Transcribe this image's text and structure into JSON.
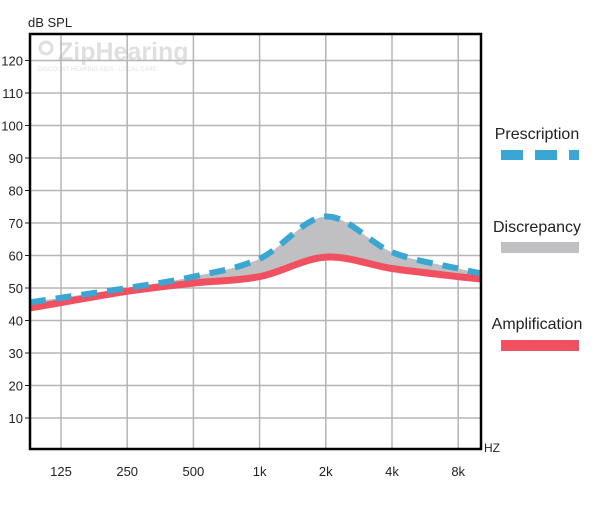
{
  "watermark": {
    "brand": "ZipHearing",
    "tagline": "DISCOUNT HEARING AIDS · LOCAL CARE"
  },
  "chart_data": {
    "type": "line",
    "ylabel": "dB SPL",
    "xlabel": "HZ",
    "ylim": [
      0,
      128
    ],
    "yticks": [
      10,
      20,
      30,
      40,
      50,
      60,
      70,
      80,
      90,
      100,
      110,
      120
    ],
    "xticks": [
      "125",
      "250",
      "500",
      "1k",
      "2k",
      "4k",
      "8k"
    ],
    "x_scale": "log2 (octaves)",
    "grid": true,
    "legend_placement": "right",
    "x": [
      "125",
      "250",
      "500",
      "1k",
      "2k",
      "4k",
      "8k"
    ],
    "series": [
      {
        "name": "Prescription",
        "style": "dashed",
        "color": "#3aa6d4",
        "values": [
          47,
          50,
          53.5,
          59,
          72,
          61,
          56
        ]
      },
      {
        "name": "Amplification",
        "style": "solid",
        "color": "#f0505f",
        "values": [
          45.5,
          49,
          51.5,
          53.5,
          59.5,
          56,
          53.5
        ]
      }
    ],
    "fill_between": {
      "name": "Discrepancy",
      "color": "#c0c0c2"
    }
  }
}
